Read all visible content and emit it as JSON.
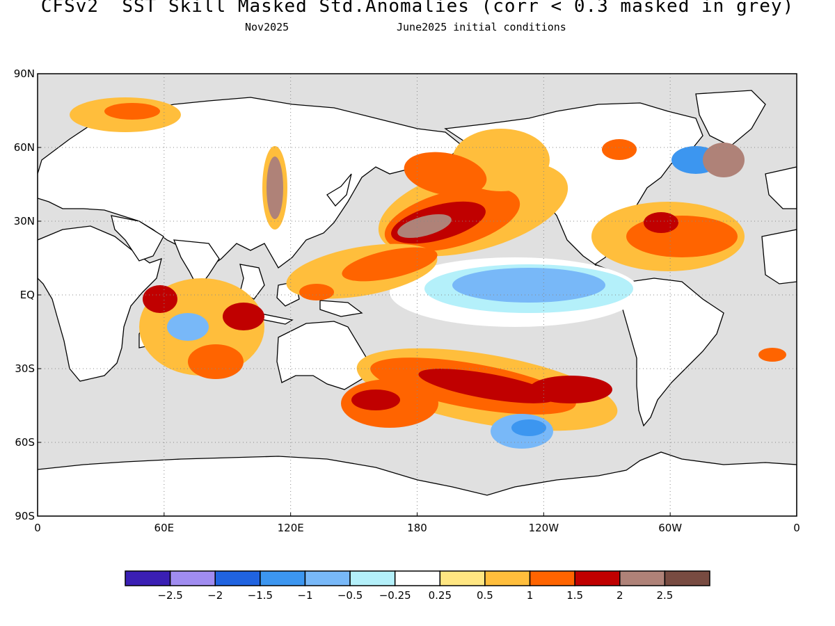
{
  "title": "CFSv2  SST Skill Masked Std.Anomalies (corr < 0.3 masked in grey)",
  "subtitle_left": "Nov2025",
  "subtitle_right": "June2025 initial conditions",
  "map": {
    "land_color": "#ffffff",
    "masked_color": "#e0e0e0",
    "lat_labels": [
      "90N",
      "60N",
      "30N",
      "EQ",
      "30S",
      "60S",
      "90S"
    ],
    "lon_labels": [
      "0",
      "60E",
      "120E",
      "180",
      "120W",
      "60W",
      "0"
    ]
  },
  "colorbar": {
    "colors": [
      "#3a1fb4",
      "#a08cf0",
      "#2063e0",
      "#3c96f0",
      "#78b8f8",
      "#b4f0fa",
      "#ffffff",
      "#ffe682",
      "#ffbe3c",
      "#ff6400",
      "#c00000",
      "#af8278",
      "#784b41"
    ],
    "labels": [
      "-2.5",
      "-2",
      "-1.5",
      "-1",
      "-0.5",
      "-0.25",
      "0.25",
      "0.5",
      "1",
      "1.5",
      "2",
      "2.5"
    ]
  }
}
